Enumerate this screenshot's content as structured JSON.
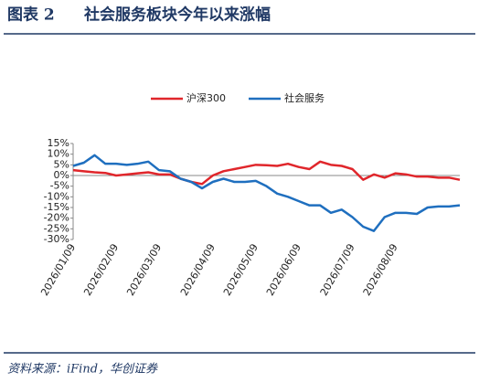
{
  "chart_data": {
    "type": "line",
    "figure_label": "图表 2",
    "title": "社会服务板块今年以来涨幅",
    "source": "资料来源：iFind，华创证券",
    "categories": [
      "2026/01/09",
      null,
      null,
      null,
      "2026/02/09",
      null,
      null,
      null,
      "2026/03/09",
      null,
      null,
      null,
      null,
      "2026/04/09",
      null,
      null,
      null,
      "2026/05/09",
      null,
      null,
      null,
      "2026/06/09",
      null,
      null,
      null,
      null,
      "2026/07/09",
      null,
      null,
      null,
      "2026/08/09",
      null,
      null,
      null,
      null,
      null,
      null
    ],
    "series": [
      {
        "name": "沪深300",
        "color": "#e0262b",
        "values": [
          2.5,
          2,
          1.5,
          1.2,
          0,
          0.5,
          1,
          1.5,
          0.5,
          0.5,
          -1.5,
          -3,
          -4,
          0,
          2,
          3,
          4,
          5,
          4.8,
          4.5,
          5.5,
          4,
          3,
          6.5,
          5,
          4.5,
          3,
          -2,
          0.5,
          -1,
          1,
          0.5,
          -0.5,
          -0.5,
          -1,
          -1,
          -2
        ]
      },
      {
        "name": "社会服务",
        "color": "#1f6fbf",
        "values": [
          4.5,
          6,
          9.5,
          5.5,
          5.5,
          5,
          5.5,
          6.5,
          2.5,
          2,
          -1.5,
          -3,
          -6,
          -3,
          -1.5,
          -3,
          -3,
          -2.5,
          -5,
          -8.5,
          -10,
          -12,
          -14,
          -14,
          -17.5,
          -16,
          -19.5,
          -24,
          -26,
          -19.5,
          -17.5,
          -17.5,
          -18,
          -15,
          -14.5,
          -14.5,
          -14
        ]
      }
    ],
    "ylim": [
      -30,
      15
    ],
    "yticks": [
      {
        "value": 15,
        "label": "15%"
      },
      {
        "value": 10,
        "label": "10%"
      },
      {
        "value": 5,
        "label": "5%"
      },
      {
        "value": 0,
        "label": "0%"
      },
      {
        "value": -5,
        "label": "-5%"
      },
      {
        "value": -10,
        "label": "-10%"
      },
      {
        "value": -15,
        "label": "-15%"
      },
      {
        "value": -20,
        "label": "-20%"
      },
      {
        "value": -25,
        "label": "-25%"
      },
      {
        "value": -30,
        "label": "-30%"
      }
    ],
    "grid": false,
    "legend": "top"
  }
}
